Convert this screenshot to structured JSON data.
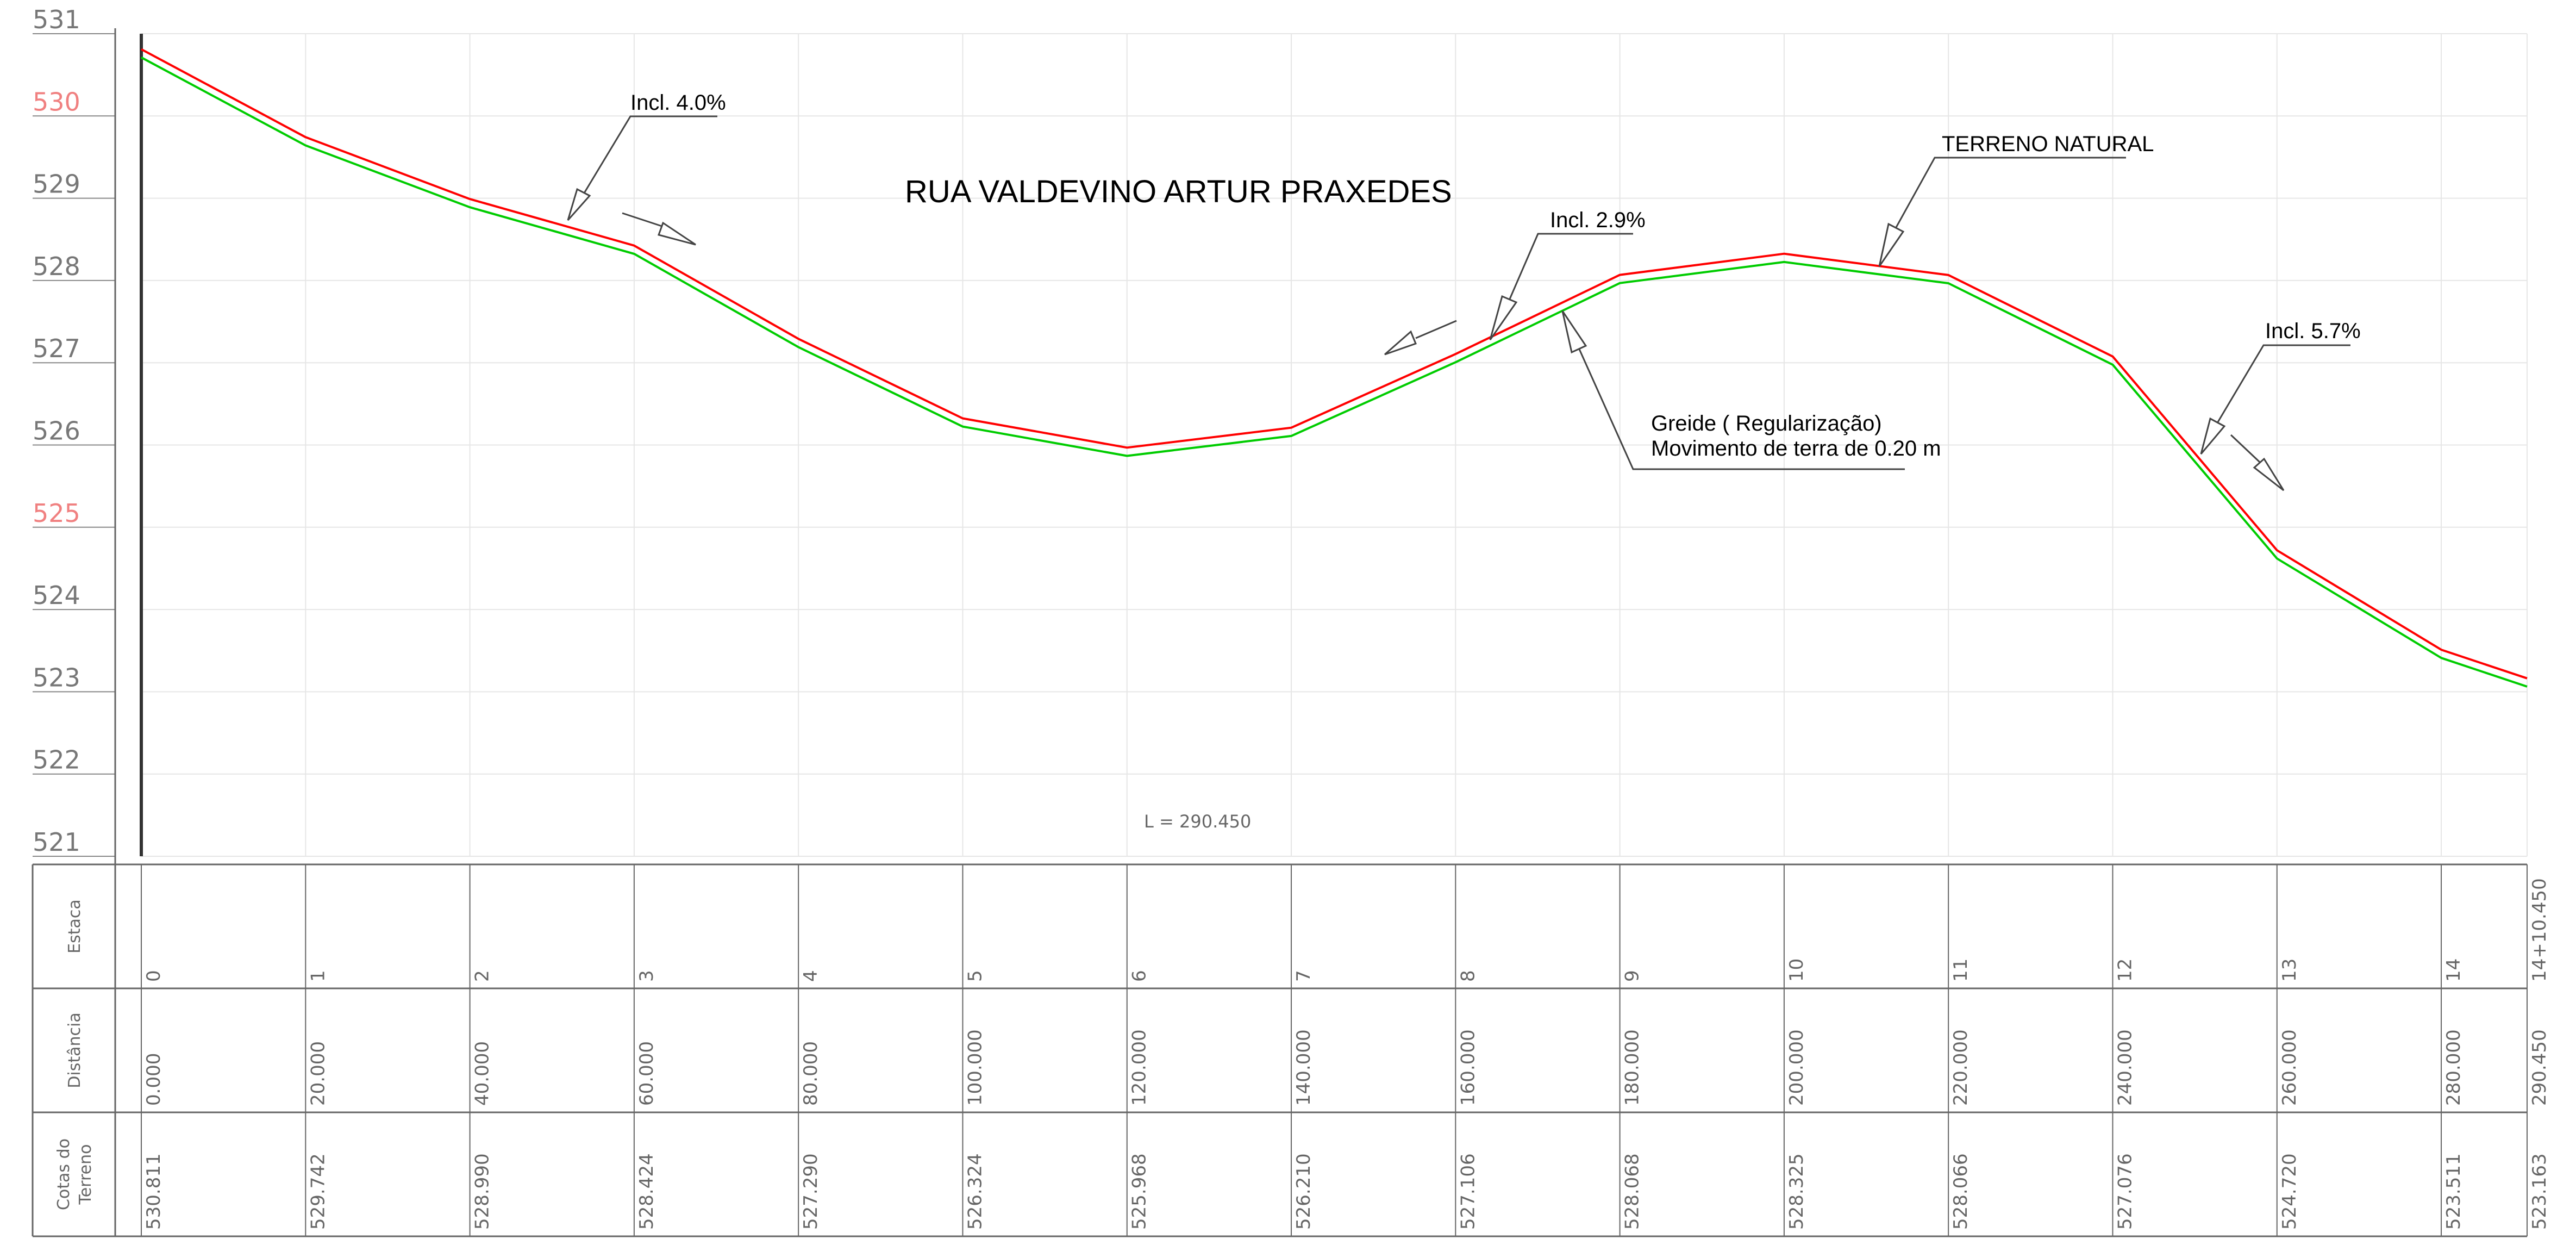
{
  "title": "RUA VALDEVINO ARTUR PRAXEDES",
  "length_label": "L  =  290.450",
  "y_axis": {
    "min": 521,
    "max": 531,
    "step": 1,
    "labels": [
      "521",
      "522",
      "523",
      "524",
      "525",
      "526",
      "527",
      "528",
      "529",
      "530",
      "531"
    ],
    "highlighted": [
      "525",
      "530"
    ]
  },
  "table": {
    "row_labels": {
      "estaca": [
        "Estaca"
      ],
      "distancia": [
        "Distância"
      ],
      "cotas": [
        "Cotas do",
        "Terreno"
      ]
    },
    "estaca": [
      "0",
      "1",
      "2",
      "3",
      "4",
      "5",
      "6",
      "7",
      "8",
      "9",
      "10",
      "11",
      "12",
      "13",
      "14",
      "14+10.450"
    ],
    "distancia": [
      "0.000",
      "20.000",
      "40.000",
      "60.000",
      "80.000",
      "100.000",
      "120.000",
      "140.000",
      "160.000",
      "180.000",
      "200.000",
      "220.000",
      "240.000",
      "260.000",
      "280.000",
      "290.450"
    ],
    "cotas": [
      "530.811",
      "529.742",
      "528.990",
      "528.424",
      "527.290",
      "526.324",
      "525.968",
      "526.210",
      "527.106",
      "528.068",
      "528.325",
      "528.066",
      "527.076",
      "524.720",
      "523.511",
      "523.163"
    ]
  },
  "annotations": {
    "incl_1": "Incl. 4.0%",
    "incl_2": "Incl. 2.9%",
    "incl_3": "Incl. 5.7%",
    "terreno": "TERRENO NATURAL",
    "greide_1": "Greide ( Regularização)",
    "greide_2": "Movimento de terra de 0.20 m"
  },
  "chart_data": {
    "type": "line",
    "x": [
      0,
      20,
      40,
      60,
      80,
      100,
      120,
      140,
      160,
      180,
      200,
      220,
      240,
      260,
      280,
      290.45
    ],
    "series": [
      {
        "name": "TERRENO NATURAL",
        "color": "#ff0000",
        "values": [
          530.811,
          529.742,
          528.99,
          528.424,
          527.29,
          526.324,
          525.968,
          526.21,
          527.106,
          528.068,
          528.325,
          528.066,
          527.076,
          524.72,
          523.511,
          523.163
        ]
      },
      {
        "name": "Greide ( Regularização)",
        "color": "#00cc00",
        "values": [
          530.711,
          529.642,
          528.89,
          528.324,
          527.19,
          526.224,
          525.868,
          526.11,
          527.006,
          527.968,
          528.225,
          527.966,
          526.976,
          524.62,
          523.411,
          523.063
        ]
      }
    ],
    "xlim": [
      0,
      290.45
    ],
    "ylim": [
      521,
      531
    ],
    "grid": true
  },
  "colors": {
    "terrain": "#ff0000",
    "grade": "#00cc00",
    "grid": "#e6e6e6",
    "frame": "#666666",
    "axis": "#333333"
  }
}
